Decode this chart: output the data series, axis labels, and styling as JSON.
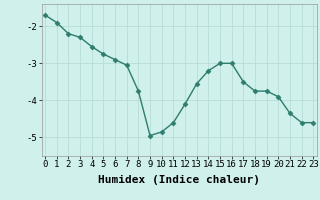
{
  "x": [
    0,
    1,
    2,
    3,
    4,
    5,
    6,
    7,
    8,
    9,
    10,
    11,
    12,
    13,
    14,
    15,
    16,
    17,
    18,
    19,
    20,
    21,
    22,
    23
  ],
  "y": [
    -1.7,
    -1.9,
    -2.2,
    -2.3,
    -2.55,
    -2.75,
    -2.9,
    -3.05,
    -3.75,
    -4.95,
    -4.85,
    -4.6,
    -4.1,
    -3.55,
    -3.2,
    -3.0,
    -3.0,
    -3.5,
    -3.75,
    -3.75,
    -3.9,
    -4.35,
    -4.6,
    -4.6
  ],
  "line_color": "#2e7d6e",
  "marker": "D",
  "markersize": 2.5,
  "linewidth": 1.0,
  "background_color": "#cff0eb",
  "grid_color": "#b8ddd8",
  "xlabel": "Humidex (Indice chaleur)",
  "xlabel_fontsize": 8,
  "yticks": [
    -5,
    -4,
    -3,
    -2
  ],
  "xticks": [
    0,
    1,
    2,
    3,
    4,
    5,
    6,
    7,
    8,
    9,
    10,
    11,
    12,
    13,
    14,
    15,
    16,
    17,
    18,
    19,
    20,
    21,
    22,
    23
  ],
  "ylim": [
    -5.5,
    -1.4
  ],
  "xlim": [
    -0.3,
    23.3
  ],
  "tick_fontsize": 6.5,
  "spine_color": "#999999",
  "font_family": "monospace"
}
